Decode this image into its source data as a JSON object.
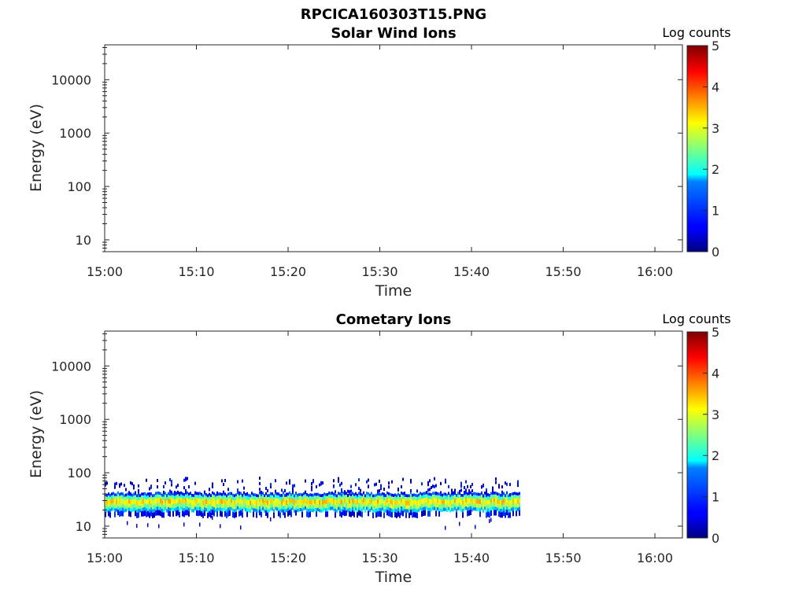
{
  "figure": {
    "file_title": "RPCICA160303T15.PNG"
  },
  "colorbar": {
    "label": "Log counts",
    "ticks": [
      "0",
      "1",
      "2",
      "3",
      "4",
      "5"
    ],
    "range": [
      0,
      5
    ],
    "colormap": "jet"
  },
  "chart_data": [
    {
      "type": "heatmap",
      "title": "Solar Wind Ions",
      "xlabel": "Time",
      "ylabel": "Energy (eV)",
      "x_ticks": [
        "15:00",
        "15:10",
        "15:20",
        "15:30",
        "15:40",
        "15:50",
        "16:00"
      ],
      "xlim_minutes": [
        0,
        63
      ],
      "y_ticks": [
        "10",
        "100",
        "1000",
        "10000"
      ],
      "y_scale": "log",
      "ylim": [
        6,
        45000
      ],
      "data": []
    },
    {
      "type": "heatmap",
      "title": "Cometary Ions",
      "xlabel": "Time",
      "ylabel": "Energy (eV)",
      "x_ticks": [
        "15:00",
        "15:10",
        "15:20",
        "15:30",
        "15:40",
        "15:50",
        "16:00"
      ],
      "xlim_minutes": [
        0,
        63
      ],
      "y_ticks": [
        "10",
        "100",
        "1000",
        "10000"
      ],
      "y_scale": "log",
      "ylim": [
        6,
        45000
      ],
      "data_time_range_minutes": [
        0,
        45.2
      ],
      "bands": [
        {
          "energy_range_eV": [
            26,
            32
          ],
          "log_counts": 3.2
        },
        {
          "energy_range_eV": [
            22,
            26
          ],
          "log_counts": 2.6
        },
        {
          "energy_range_eV": [
            32,
            37
          ],
          "log_counts": 2.3
        },
        {
          "energy_range_eV": [
            19,
            22
          ],
          "log_counts": 1.6
        },
        {
          "energy_range_eV": [
            37,
            42
          ],
          "log_counts": 0.9
        },
        {
          "energy_range_eV": [
            15,
            19
          ],
          "log_counts": 0.6
        },
        {
          "energy_range_eV": [
            42,
            80
          ],
          "log_counts": 0.2
        }
      ]
    }
  ]
}
